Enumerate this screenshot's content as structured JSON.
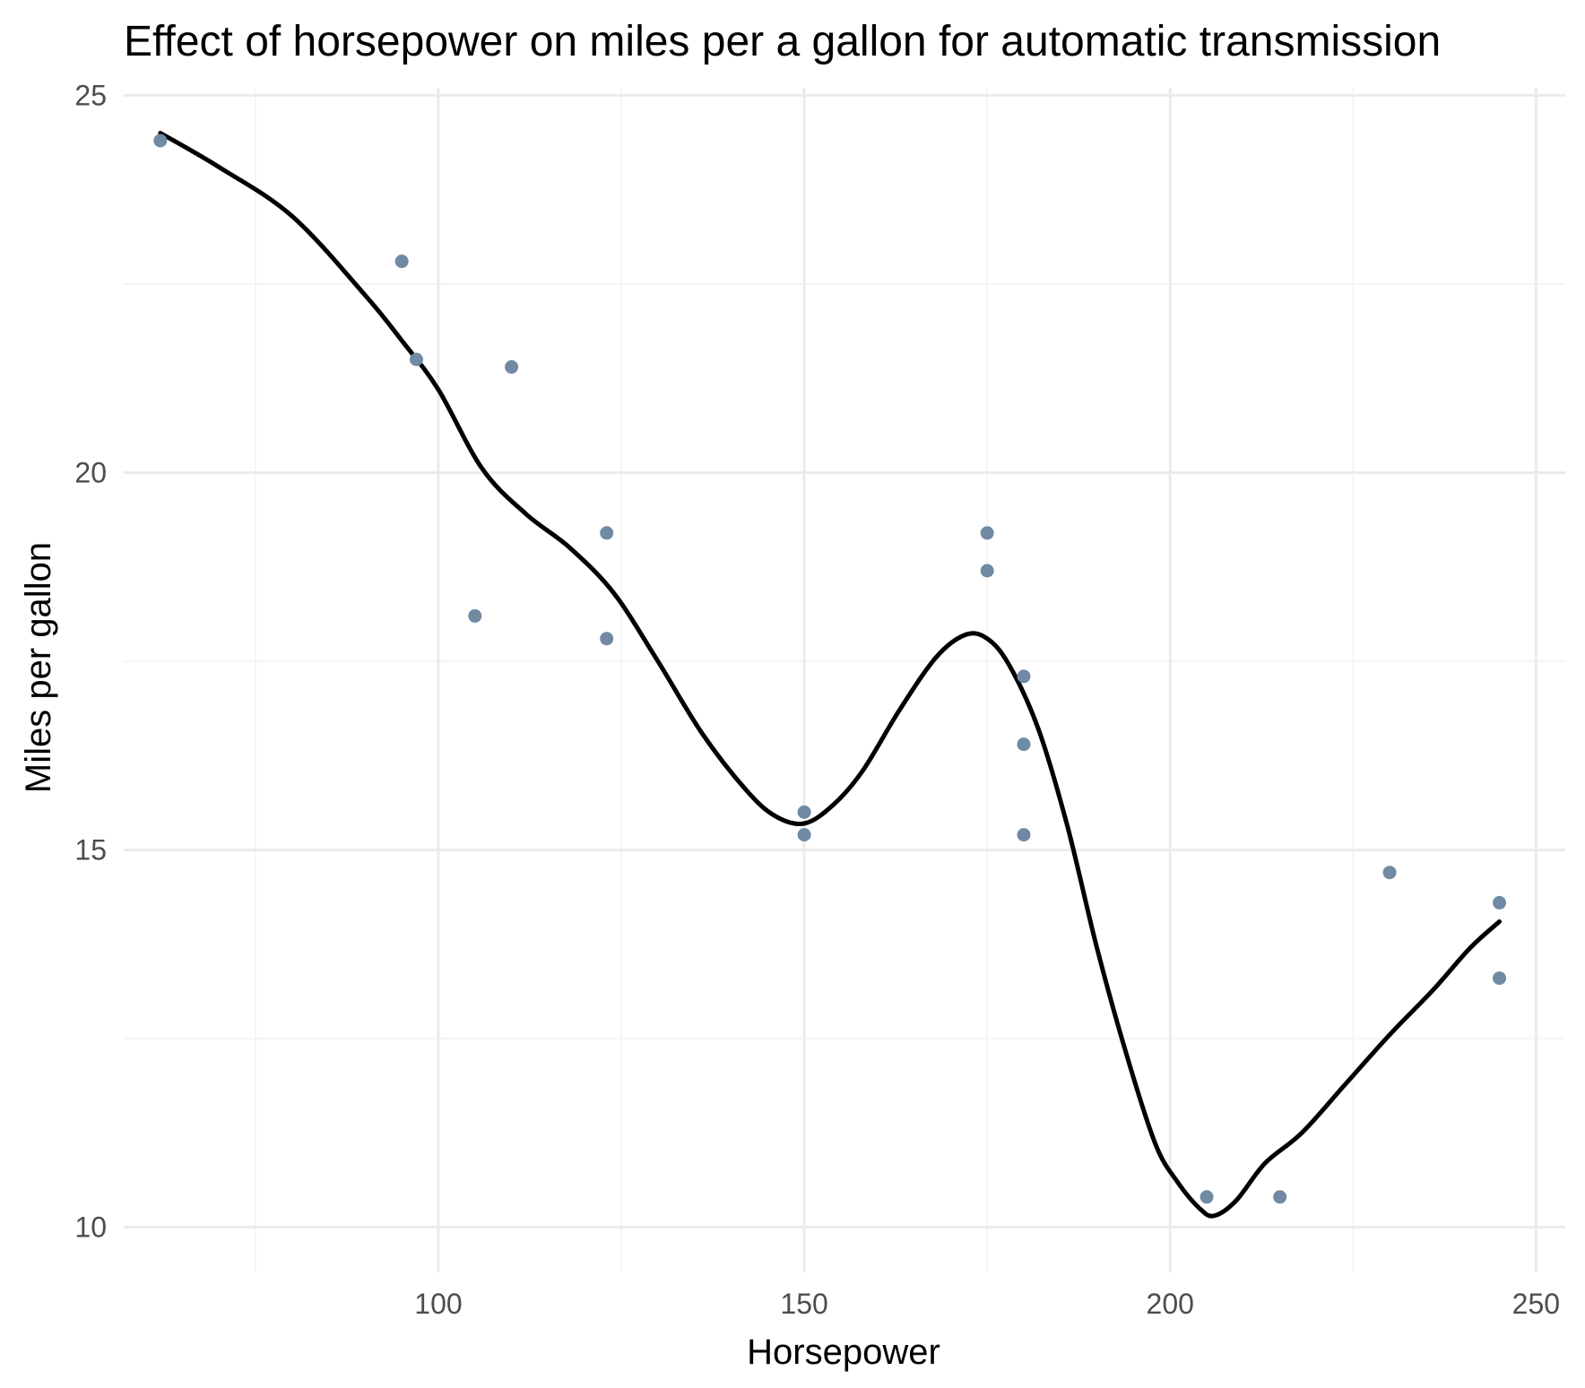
{
  "chart_data": {
    "type": "scatter",
    "title": "Effect of horsepower on miles per a gallon for automatic transmission",
    "xlabel": "Horsepower",
    "ylabel": "Miles per gallon",
    "xlim": [
      57,
      254
    ],
    "ylim": [
      9.4,
      25.1
    ],
    "x_ticks": [
      100,
      150,
      200,
      250
    ],
    "y_ticks": [
      10,
      15,
      20,
      25
    ],
    "x_minor_ticks": [
      75,
      125,
      175,
      225
    ],
    "y_minor_ticks": [
      12.5,
      17.5,
      22.5
    ],
    "grid": true,
    "legend": "none",
    "point_color": "#708aa4",
    "line_color": "#000000",
    "points": [
      {
        "x": 62,
        "y": 24.4
      },
      {
        "x": 95,
        "y": 22.8
      },
      {
        "x": 97,
        "y": 21.5
      },
      {
        "x": 105,
        "y": 18.1
      },
      {
        "x": 110,
        "y": 21.4
      },
      {
        "x": 123,
        "y": 19.2
      },
      {
        "x": 123,
        "y": 17.8
      },
      {
        "x": 150,
        "y": 15.5
      },
      {
        "x": 150,
        "y": 15.2
      },
      {
        "x": 175,
        "y": 19.2
      },
      {
        "x": 175,
        "y": 18.7
      },
      {
        "x": 180,
        "y": 17.3
      },
      {
        "x": 180,
        "y": 16.4
      },
      {
        "x": 180,
        "y": 15.2
      },
      {
        "x": 205,
        "y": 10.4
      },
      {
        "x": 215,
        "y": 10.4
      },
      {
        "x": 230,
        "y": 14.7
      },
      {
        "x": 245,
        "y": 14.3
      },
      {
        "x": 245,
        "y": 13.3
      }
    ],
    "smooth_line": [
      {
        "x": 62,
        "y": 24.5
      },
      {
        "x": 70,
        "y": 24.05
      },
      {
        "x": 80,
        "y": 23.4
      },
      {
        "x": 90,
        "y": 22.35
      },
      {
        "x": 95,
        "y": 21.75
      },
      {
        "x": 100,
        "y": 21.1
      },
      {
        "x": 106,
        "y": 20.05
      },
      {
        "x": 112,
        "y": 19.45
      },
      {
        "x": 118,
        "y": 19.0
      },
      {
        "x": 124,
        "y": 18.4
      },
      {
        "x": 130,
        "y": 17.5
      },
      {
        "x": 136,
        "y": 16.55
      },
      {
        "x": 142,
        "y": 15.8
      },
      {
        "x": 146,
        "y": 15.45
      },
      {
        "x": 150,
        "y": 15.35
      },
      {
        "x": 154,
        "y": 15.6
      },
      {
        "x": 158,
        "y": 16.05
      },
      {
        "x": 163,
        "y": 16.85
      },
      {
        "x": 168,
        "y": 17.55
      },
      {
        "x": 172,
        "y": 17.85
      },
      {
        "x": 175,
        "y": 17.8
      },
      {
        "x": 178,
        "y": 17.45
      },
      {
        "x": 182,
        "y": 16.6
      },
      {
        "x": 186,
        "y": 15.3
      },
      {
        "x": 190,
        "y": 13.7
      },
      {
        "x": 194,
        "y": 12.3
      },
      {
        "x": 198,
        "y": 11.1
      },
      {
        "x": 201,
        "y": 10.6
      },
      {
        "x": 204,
        "y": 10.25
      },
      {
        "x": 206,
        "y": 10.15
      },
      {
        "x": 209,
        "y": 10.35
      },
      {
        "x": 213,
        "y": 10.85
      },
      {
        "x": 218,
        "y": 11.25
      },
      {
        "x": 224,
        "y": 11.9
      },
      {
        "x": 230,
        "y": 12.55
      },
      {
        "x": 236,
        "y": 13.15
      },
      {
        "x": 241,
        "y": 13.7
      },
      {
        "x": 245,
        "y": 14.05
      }
    ]
  }
}
